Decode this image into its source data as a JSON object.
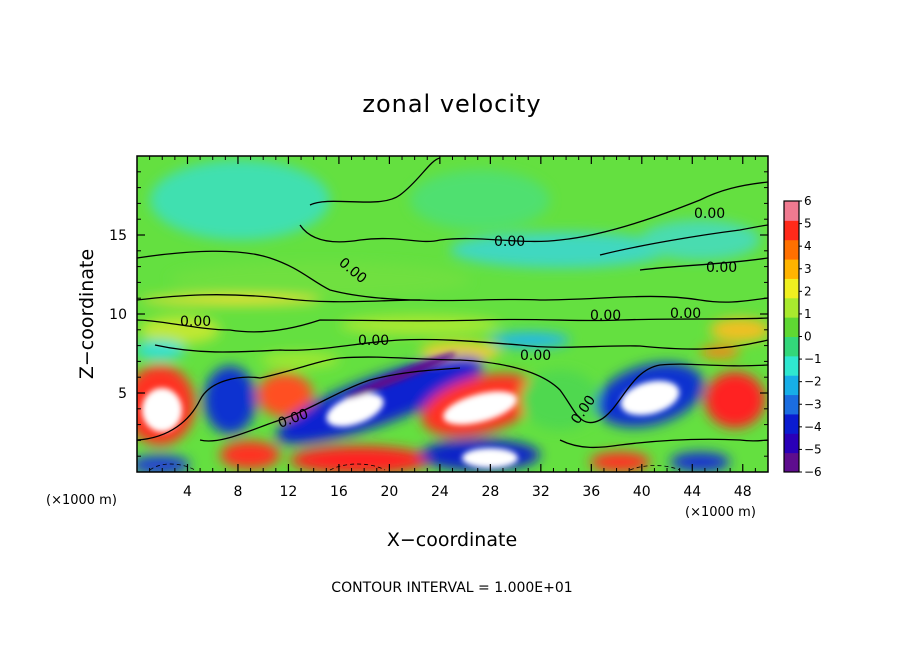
{
  "chart_data": {
    "type": "heatmap",
    "title": "zonal velocity",
    "xlabel": "X−coordinate",
    "ylabel": "Z−coordinate",
    "x_unit": "(×1000 m)",
    "y_unit": "(×1000 m)",
    "xlim": [
      0,
      50
    ],
    "ylim": [
      0,
      20
    ],
    "x_ticks": [
      "4",
      "8",
      "12",
      "16",
      "20",
      "24",
      "28",
      "32",
      "36",
      "40",
      "44",
      "48"
    ],
    "y_ticks": [
      "5",
      "10",
      "15"
    ],
    "colorbar": {
      "min": -6,
      "max": 6,
      "ticks": [
        "6",
        "5",
        "4",
        "3",
        "2",
        "1",
        "0",
        "−1",
        "−2",
        "−3",
        "−4",
        "−5",
        "−6"
      ],
      "colors": [
        "#5e0d8e",
        "#2a00b8",
        "#0b1cd0",
        "#1b6de0",
        "#17aee8",
        "#2fe7d0",
        "#33d77a",
        "#5fd833",
        "#a9ea2e",
        "#f0f020",
        "#ffb400",
        "#ff7000",
        "#ff2a1a",
        "#f07a90"
      ]
    },
    "contour_labels": [
      "0.00",
      "0.00",
      "0.00",
      "0.00",
      "0.00",
      "0.00",
      "0.00",
      "0.00",
      "0.00",
      "0.00",
      "0.00"
    ],
    "contour_interval_text": "CONTOUR INTERVAL = 1.000E+01",
    "grid": false,
    "legend": "colorbar-right"
  }
}
